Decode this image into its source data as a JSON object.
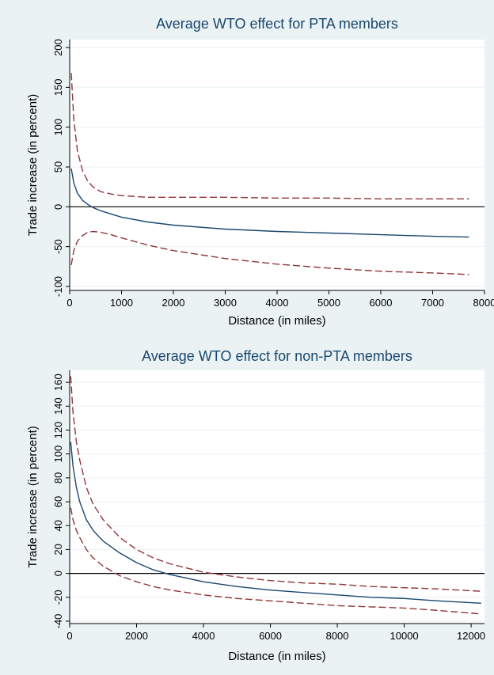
{
  "colors": {
    "panel_bg": "#eaf2f3",
    "plot_bg": "#ffffff",
    "grid": "#eaf2f3",
    "title": "#1a476f",
    "text": "#000000",
    "estimate": "#1a476f",
    "ci": "#90353b",
    "zero_line": "#000000"
  },
  "chart_data": [
    {
      "type": "line",
      "title": "Average WTO effect for PTA members",
      "xlabel": "Distance (in miles)",
      "ylabel": "Trade increase (in percent)",
      "xlim": [
        0,
        8000
      ],
      "ylim": [
        -105,
        210
      ],
      "xticks": [
        0,
        1000,
        2000,
        3000,
        4000,
        5000,
        6000,
        7000,
        8000
      ],
      "yticks": [
        -100,
        -50,
        0,
        50,
        100,
        150,
        200
      ],
      "grid": true,
      "legend": "none",
      "reference_line_y": 0,
      "series": [
        {
          "style": "solid",
          "x": [
            30,
            80,
            150,
            250,
            350,
            450,
            600,
            800,
            1000,
            1500,
            2000,
            3000,
            4000,
            5000,
            6000,
            7000,
            7700
          ],
          "values": [
            48,
            30,
            17,
            8,
            3,
            -1,
            -5,
            -9,
            -13,
            -19,
            -23,
            -28,
            -31,
            -33,
            -35,
            -37,
            -38
          ]
        },
        {
          "style": "dashed",
          "x": [
            30,
            80,
            150,
            250,
            350,
            450,
            600,
            800,
            1000,
            1500,
            2000,
            3000,
            4000,
            5000,
            6000,
            7000,
            7700
          ],
          "values": [
            168,
            110,
            70,
            45,
            32,
            25,
            19,
            16,
            14,
            12,
            12,
            12,
            11,
            11,
            10,
            10,
            10
          ]
        },
        {
          "style": "dashed",
          "x": [
            30,
            80,
            150,
            250,
            350,
            450,
            600,
            800,
            1000,
            1500,
            2000,
            3000,
            4000,
            5000,
            6000,
            7000,
            7700
          ],
          "values": [
            -73,
            -55,
            -43,
            -36,
            -32,
            -31,
            -32,
            -35,
            -39,
            -48,
            -55,
            -65,
            -72,
            -77,
            -81,
            -83,
            -85
          ]
        }
      ]
    },
    {
      "type": "line",
      "title": "Average WTO effect for non-PTA members",
      "xlabel": "Distance (in miles)",
      "ylabel": "Trade increase (in percent)",
      "xlim": [
        0,
        12400
      ],
      "ylim": [
        -42,
        170
      ],
      "xticks": [
        0,
        2000,
        4000,
        6000,
        8000,
        10000,
        12000
      ],
      "yticks": [
        -40,
        -20,
        0,
        20,
        40,
        60,
        80,
        100,
        120,
        140,
        160
      ],
      "grid": true,
      "legend": "none",
      "reference_line_y": 0,
      "series": [
        {
          "style": "solid",
          "x": [
            30,
            100,
            200,
            300,
            500,
            700,
            1000,
            1500,
            2000,
            2500,
            3000,
            4000,
            5000,
            6000,
            7000,
            8000,
            9000,
            10000,
            11000,
            12300
          ],
          "values": [
            110,
            90,
            72,
            60,
            45,
            36,
            27,
            17,
            9,
            3,
            -1,
            -7,
            -11,
            -14,
            -16,
            -18,
            -20,
            -21,
            -23,
            -25
          ]
        },
        {
          "style": "dashed",
          "x": [
            30,
            100,
            200,
            300,
            500,
            700,
            1000,
            1500,
            2000,
            2500,
            3000,
            4000,
            5000,
            6000,
            7000,
            8000,
            9000,
            10000,
            11000,
            12300
          ],
          "values": [
            165,
            135,
            110,
            95,
            72,
            58,
            45,
            30,
            20,
            13,
            8,
            1,
            -3,
            -6,
            -8,
            -9,
            -11,
            -12,
            -13,
            -15
          ]
        },
        {
          "style": "dashed",
          "x": [
            30,
            100,
            200,
            300,
            500,
            700,
            1000,
            1500,
            2000,
            2500,
            3000,
            4000,
            5000,
            6000,
            7000,
            8000,
            9000,
            10000,
            11000,
            12300
          ],
          "values": [
            55,
            45,
            36,
            30,
            20,
            13,
            6,
            -2,
            -7,
            -11,
            -14,
            -18,
            -21,
            -23,
            -25,
            -27,
            -28,
            -29,
            -31,
            -34
          ]
        }
      ]
    }
  ]
}
